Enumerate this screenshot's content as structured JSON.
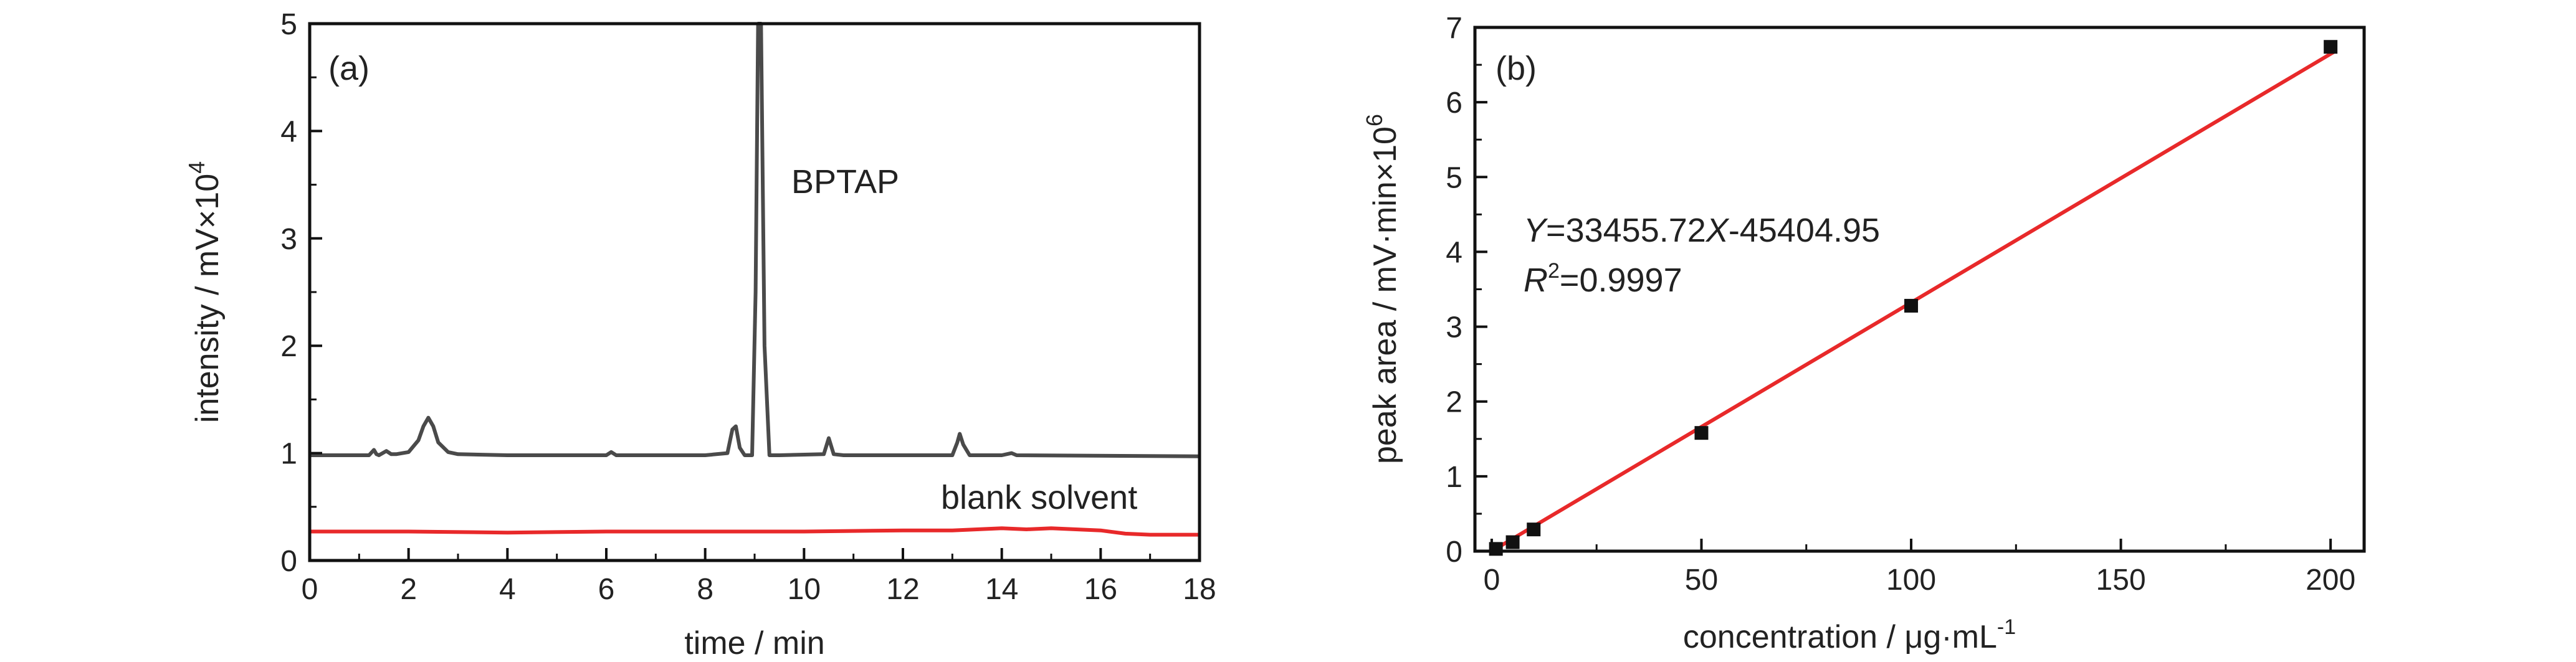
{
  "chart_data": [
    {
      "type": "line",
      "panel_label": "(a)",
      "xlabel": "time / min",
      "ylabel": "intensity / mV×10",
      "ylabel_sup": "4",
      "xlim": [
        0,
        18
      ],
      "ylim": [
        0,
        5
      ],
      "x_ticks": [
        "0",
        "2",
        "4",
        "6",
        "8",
        "10",
        "12",
        "14",
        "16",
        "18"
      ],
      "y_ticks": [
        "0",
        "1",
        "2",
        "3",
        "4",
        "5"
      ],
      "annotations": [
        {
          "text": "BPTAP"
        },
        {
          "text": "blank solvent"
        }
      ],
      "series": [
        {
          "color": "#4a4a4a",
          "x": [
            0,
            1.2,
            1.3,
            1.35,
            1.4,
            1.55,
            1.65,
            1.75,
            2.0,
            2.2,
            2.3,
            2.4,
            2.5,
            2.6,
            2.8,
            3.0,
            4.0,
            6.0,
            6.1,
            6.2,
            8.0,
            8.45,
            8.55,
            8.62,
            8.7,
            8.8,
            8.95,
            9.02,
            9.07,
            9.13,
            9.2,
            9.3,
            9.5,
            10.4,
            10.5,
            10.6,
            10.8,
            13.0,
            13.1,
            13.15,
            13.22,
            13.35,
            14.0,
            14.2,
            14.3,
            18.0
          ],
          "y": [
            0.98,
            0.98,
            1.03,
            0.99,
            0.98,
            1.02,
            0.99,
            0.99,
            1.01,
            1.12,
            1.25,
            1.33,
            1.25,
            1.1,
            1.01,
            0.99,
            0.98,
            0.98,
            1.01,
            0.98,
            0.98,
            1.0,
            1.22,
            1.25,
            1.05,
            0.98,
            0.98,
            2.5,
            5.0,
            5.0,
            2.0,
            0.98,
            0.98,
            0.99,
            1.14,
            0.99,
            0.98,
            0.98,
            1.1,
            1.18,
            1.08,
            0.98,
            0.98,
            1.0,
            0.98,
            0.97
          ]
        },
        {
          "name": "blank solvent",
          "color": "#e8292a",
          "x": [
            0,
            2,
            4,
            6,
            8,
            10,
            12,
            13,
            13.5,
            14,
            14.5,
            15,
            15.5,
            16,
            16.5,
            17,
            18
          ],
          "y": [
            0.27,
            0.27,
            0.26,
            0.27,
            0.27,
            0.27,
            0.28,
            0.28,
            0.29,
            0.3,
            0.29,
            0.3,
            0.29,
            0.28,
            0.25,
            0.24,
            0.24
          ]
        }
      ]
    },
    {
      "type": "scatter",
      "panel_label": "(b)",
      "xlabel": "concentration / μg·mL",
      "xlabel_sup": "-1",
      "ylabel": "peak area / mV·min×10",
      "ylabel_sup": "6",
      "xlim": [
        -4,
        208
      ],
      "ylim": [
        0,
        7
      ],
      "x_ticks": [
        0,
        50,
        100,
        150,
        200
      ],
      "y_ticks": [
        0,
        1,
        2,
        3,
        4,
        5,
        6,
        7
      ],
      "equation_prefix": "Y",
      "equation_mid": "=33455.72",
      "equation_x": "X",
      "equation_suffix": "-45404.95",
      "r2_label": "R",
      "r2_sup": "2",
      "r2_value": "=0.9997",
      "fit": {
        "slope": 33455.72,
        "intercept": -45404.95,
        "color": "#e8292a"
      },
      "points": {
        "x": [
          1,
          5,
          10,
          50,
          100,
          200
        ],
        "y": [
          0.03,
          0.12,
          0.29,
          1.58,
          3.28,
          6.74
        ]
      }
    }
  ]
}
